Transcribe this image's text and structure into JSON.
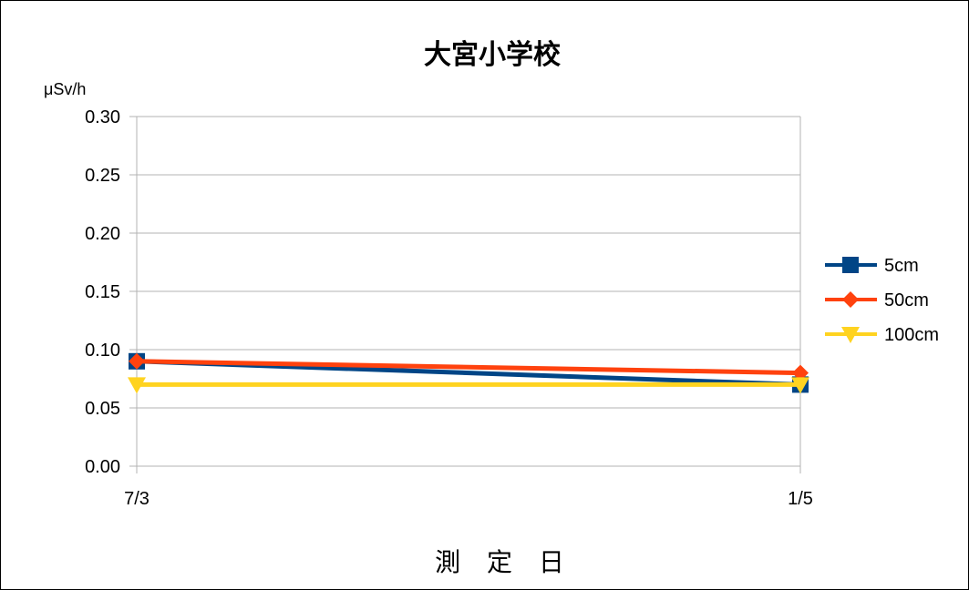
{
  "chart_data": {
    "type": "line",
    "title": "大宮小学校",
    "unit": "μSv/h",
    "xlabel": "測 定 日",
    "ylabel": "",
    "categories": [
      "7/3",
      "1/5"
    ],
    "ylim": [
      0,
      0.3
    ],
    "yticks": [
      "0.00",
      "0.05",
      "0.10",
      "0.15",
      "0.20",
      "0.25",
      "0.30"
    ],
    "grid": true,
    "legend_position": "right",
    "series": [
      {
        "name": "5cm",
        "values": [
          0.09,
          0.07
        ],
        "color": "#004586",
        "marker": "square"
      },
      {
        "name": "50cm",
        "values": [
          0.09,
          0.08
        ],
        "color": "#ff420e",
        "marker": "diamond"
      },
      {
        "name": "100cm",
        "values": [
          0.07,
          0.07
        ],
        "color": "#ffd320",
        "marker": "triangle-down"
      }
    ]
  }
}
